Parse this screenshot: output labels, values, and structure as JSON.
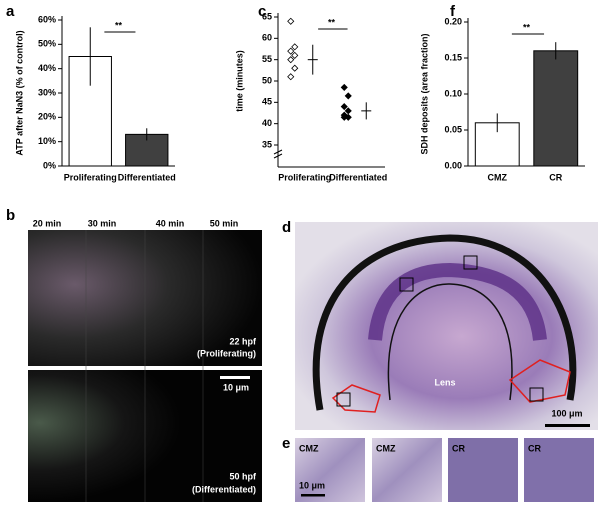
{
  "chart_data": [
    {
      "panel": "a",
      "type": "bar",
      "ylabel": "ATP after NaN3 (% of control)",
      "categories": [
        "Proliferating",
        "Differentiated"
      ],
      "values": [
        45,
        13
      ],
      "errors": [
        12,
        2.5
      ],
      "colors": [
        "#ffffff",
        "#404040"
      ],
      "ylim": [
        0,
        60
      ],
      "yticks": [
        {
          "value": 0,
          "label": "0%"
        },
        {
          "value": 10,
          "label": "10%"
        },
        {
          "value": 20,
          "label": "20%"
        },
        {
          "value": 30,
          "label": "30%"
        },
        {
          "value": 40,
          "label": "40%"
        },
        {
          "value": 50,
          "label": "50%"
        },
        {
          "value": 60,
          "label": "60%"
        }
      ],
      "annotation": "**"
    },
    {
      "panel": "c",
      "type": "strip",
      "ylabel": "time (minutes)",
      "categories": [
        "Proliferating",
        "Differentiated"
      ],
      "values": [
        [
          64,
          58,
          57,
          56,
          55,
          53,
          51
        ],
        [
          48.5,
          46.5,
          44,
          43,
          42,
          41.5,
          41.5
        ]
      ],
      "means": [
        55,
        43
      ],
      "errors": [
        3.5,
        2
      ],
      "colors": [
        "#ffffff",
        "#000000"
      ],
      "ylim": [
        35,
        65
      ],
      "yticks": [
        35,
        40,
        45,
        50,
        55,
        60,
        65
      ],
      "annotation": "**"
    },
    {
      "panel": "f",
      "type": "bar",
      "ylabel": "SDH deposits (area fraction)",
      "categories": [
        "CMZ",
        "CR"
      ],
      "values": [
        0.06,
        0.16
      ],
      "errors": [
        0.013,
        0.012
      ],
      "colors": [
        "#ffffff",
        "#404040"
      ],
      "ylim": [
        0,
        0.2
      ],
      "yticks": [
        {
          "value": 0,
          "label": "0.00"
        },
        0.05,
        {
          "value": 0.1,
          "label": "0.10"
        },
        0.15,
        {
          "value": 0.2,
          "label": "0.20"
        }
      ],
      "annotation": "**"
    }
  ],
  "figure": {
    "b": {
      "label": "b",
      "times": [
        "20 min",
        "30 min",
        "40 min",
        "50 min"
      ],
      "top": [
        "22 hpf",
        "(Proliferating)"
      ],
      "bottom": [
        "50 hpf",
        "(Differentiated)"
      ],
      "scale": "10 μm"
    },
    "d": {
      "label": "d",
      "lens": "Lens",
      "scale": "100 μm"
    },
    "e": {
      "label": "e",
      "tiles": [
        "CMZ",
        "CMZ",
        "CR",
        "CR"
      ],
      "scale": "10 μm"
    }
  }
}
